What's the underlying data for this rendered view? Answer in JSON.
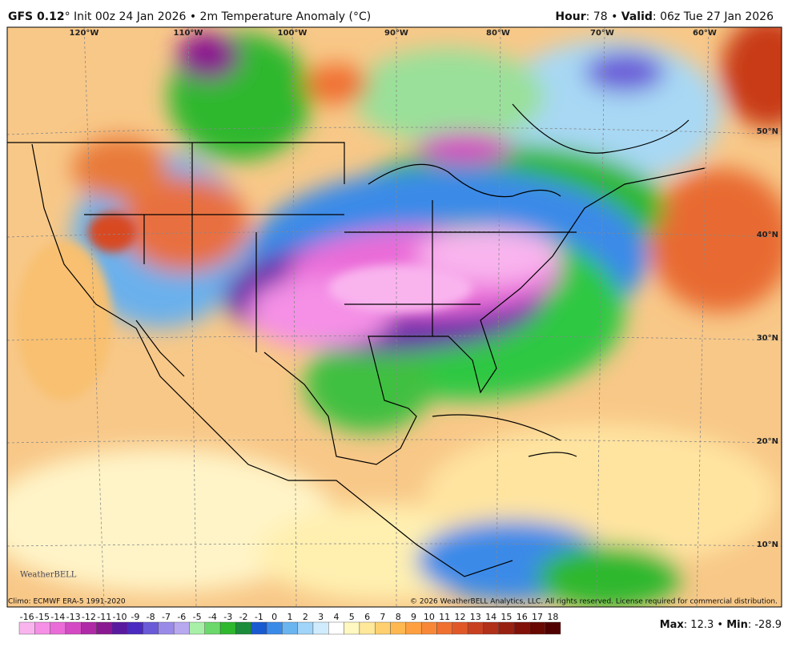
{
  "header": {
    "model": "GFS 0.12",
    "init": "° Init 00z 24 Jan 2026 • 2m Temperature Anomaly (°C)",
    "hour_label": "Hour",
    "hour": ": 78 • ",
    "valid_label": "Valid",
    "valid": ": 06z Tue 27 Jan 2026"
  },
  "map": {
    "longitudes": [
      "120°W",
      "110°W",
      "100°W",
      "90°W",
      "80°W",
      "70°W",
      "60°W"
    ],
    "latitudes": [
      "50°N",
      "40°N",
      "30°N",
      "20°N",
      "10°N"
    ],
    "logo": "WeatherBELL"
  },
  "footer": {
    "climo": "Climo: ECMWF ERA-5 1991-2020",
    "copyright": "© 2026 WeatherBELL Analytics, LLC. All rights reserved. License required for commercial distribution.",
    "max_label": "Max",
    "max": ": 12.3 • ",
    "min_label": "Min",
    "min": ": -28.9"
  },
  "colorbar": {
    "ticks": [
      -16,
      -15,
      -14,
      -13,
      -12,
      -11,
      -10,
      -9,
      -8,
      -7,
      -6,
      -5,
      -4,
      -3,
      -2,
      -1,
      0,
      1,
      2,
      3,
      4,
      5,
      6,
      7,
      8,
      9,
      10,
      11,
      12,
      13,
      14,
      15,
      16,
      17,
      18
    ],
    "colors": [
      "#f9b4ee",
      "#f590e6",
      "#ea6cd8",
      "#d44ac4",
      "#b02aa8",
      "#8a1890",
      "#5a1aa0",
      "#4a2ac0",
      "#6a5ad8",
      "#9a8ae8",
      "#b8a8f0",
      "#a8f0a8",
      "#6ad86a",
      "#2eb82e",
      "#1a8c3a",
      "#1a5ad0",
      "#3a8ae8",
      "#6ab4f0",
      "#a0d4f8",
      "#d0ecfc",
      "#ffffff",
      "#fff8c0",
      "#ffe89a",
      "#ffd070",
      "#ffb850",
      "#ffa040",
      "#f88838",
      "#f07030",
      "#e05828",
      "#c84020",
      "#b03018",
      "#982010",
      "#801008",
      "#680800",
      "#500000"
    ]
  }
}
